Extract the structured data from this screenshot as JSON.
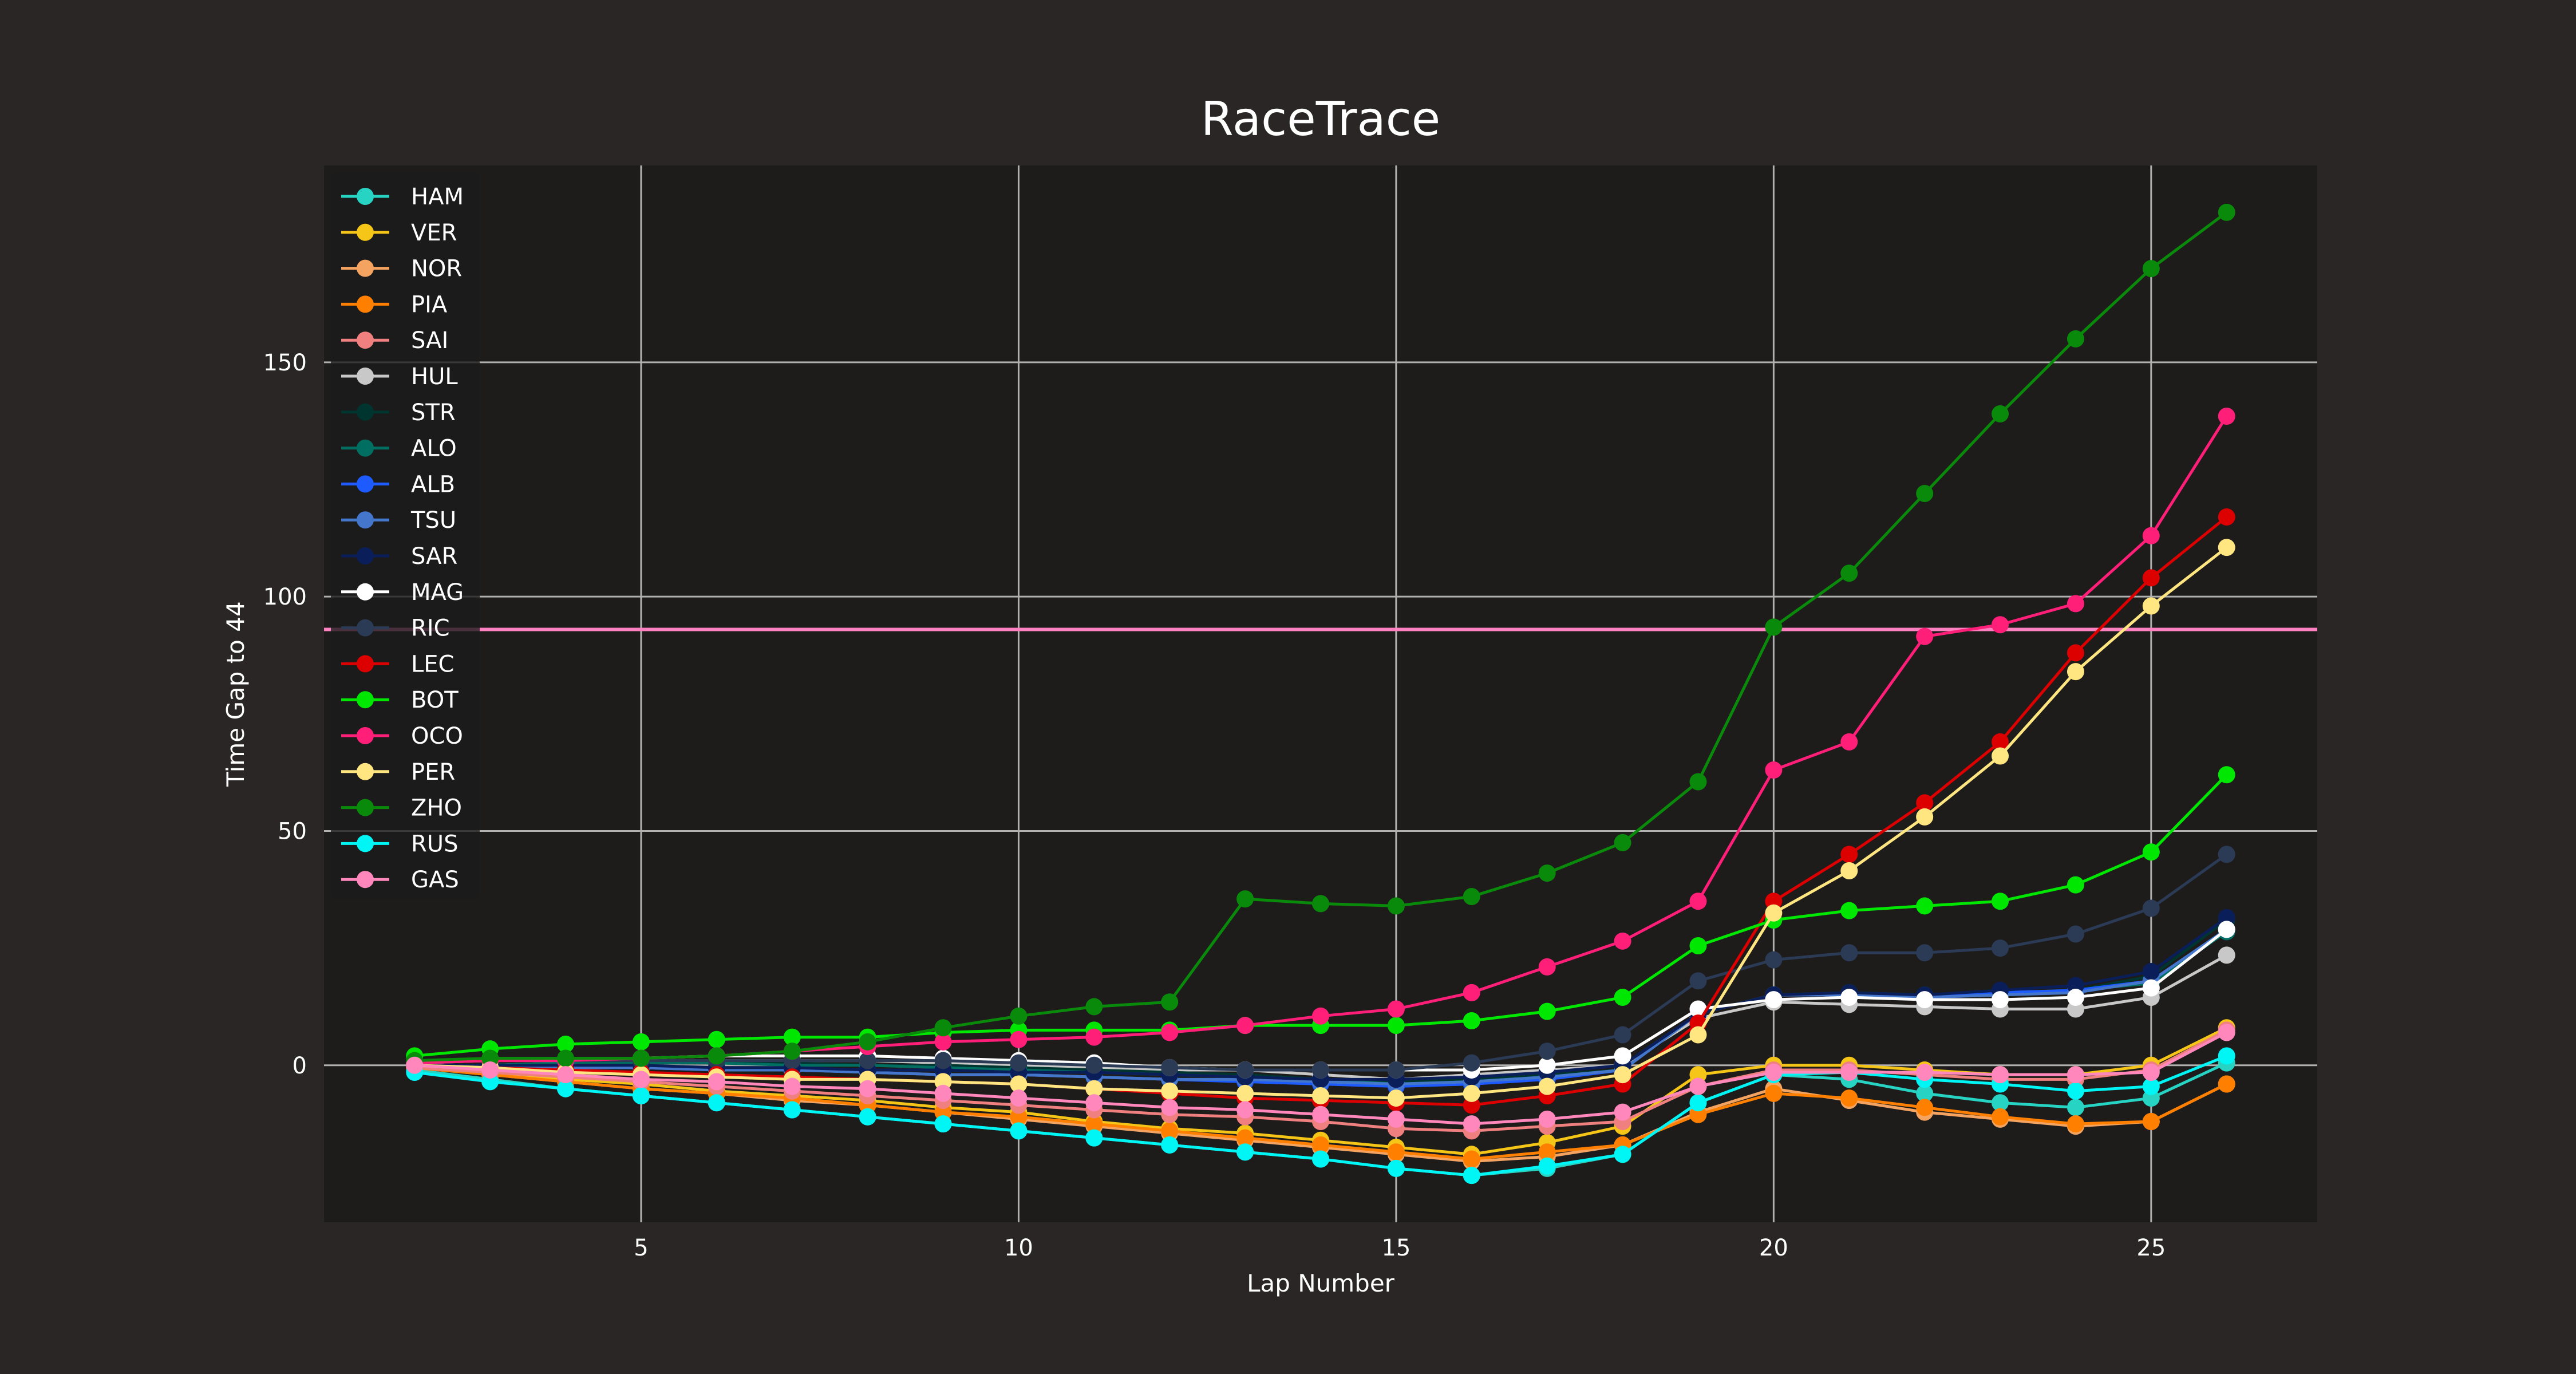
{
  "chart_data": {
    "type": "line",
    "title": "RaceTrace",
    "xlabel": "Lap Number",
    "ylabel": "Time Gap to 44",
    "xlim": [
      0.8,
      27.2
    ],
    "ylim": [
      -33.5,
      192
    ],
    "x_ticks": [
      5,
      10,
      15,
      20,
      25
    ],
    "y_ticks": [
      0,
      50,
      100,
      150
    ],
    "grid": true,
    "legend_position": "upper-left",
    "reference_line": {
      "y": 93,
      "color": "#ff80c0"
    },
    "x": [
      2,
      3,
      4,
      5,
      6,
      7,
      8,
      9,
      10,
      11,
      12,
      13,
      14,
      15,
      16,
      17,
      18,
      19,
      20,
      21,
      22,
      23,
      24,
      25,
      26
    ],
    "series": [
      {
        "name": "HAM",
        "color": "#27d3c3",
        "values": [
          -1,
          -3,
          -5,
          -6.5,
          -8,
          -9.5,
          -11,
          -12.5,
          -14,
          -15.5,
          -17,
          -18.5,
          -20,
          -22,
          -23.5,
          -22,
          -19,
          -8,
          -2,
          -3,
          -6,
          -8,
          -9,
          -7,
          0.5
        ]
      },
      {
        "name": "VER",
        "color": "#f5c518",
        "values": [
          -0.5,
          -1.5,
          -3,
          -4,
          -5.5,
          -6.5,
          -7.5,
          -9,
          -10,
          -12,
          -13.5,
          -14.5,
          -16,
          -17.5,
          -19,
          -16.5,
          -13,
          -2,
          0,
          0,
          -1,
          -2,
          -2,
          0,
          8
        ]
      },
      {
        "name": "NOR",
        "color": "#f4a460",
        "values": [
          -0.5,
          -2,
          -3.5,
          -5,
          -6,
          -7.5,
          -8.5,
          -10,
          -11.5,
          -13,
          -14.5,
          -16,
          -17.5,
          -19,
          -20.5,
          -19.5,
          -17,
          -10,
          -5,
          -7.5,
          -10,
          -11.5,
          -13,
          -12,
          -4
        ]
      },
      {
        "name": "PIA",
        "color": "#ff8000",
        "values": [
          -0.5,
          -2,
          -3.5,
          -5,
          -6,
          -7,
          -8.5,
          -10,
          -11,
          -12.5,
          -14,
          -15.5,
          -17,
          -18.5,
          -20,
          -18.5,
          -17,
          -10.5,
          -6,
          -7,
          -9,
          -11,
          -12.5,
          -12,
          -4
        ]
      },
      {
        "name": "SAI",
        "color": "#f08080",
        "values": [
          -0.5,
          -1.5,
          -2.5,
          -3.5,
          -4.5,
          -5.5,
          -6.5,
          -7.5,
          -8.5,
          -9.5,
          -10.5,
          -11,
          -12,
          -13.5,
          -14,
          -13,
          -12,
          -4.5,
          -1,
          -1,
          -2,
          -3,
          -3,
          -1,
          7.5
        ]
      },
      {
        "name": "HUL",
        "color": "#c8c8c8",
        "values": [
          0,
          0,
          0.5,
          1,
          1,
          1,
          1,
          0.5,
          0,
          -0.5,
          -1,
          -1,
          -2,
          -3,
          -2,
          -1,
          0,
          10,
          13.5,
          13,
          12.5,
          12,
          12,
          14.5,
          23.5
        ]
      },
      {
        "name": "STR",
        "color": "#00352f",
        "values": [
          0,
          0,
          0.5,
          1,
          1,
          0.5,
          0,
          0,
          -0.5,
          -1,
          -1.5,
          -2,
          -3,
          -3.5,
          -3,
          -2,
          -1,
          11,
          15,
          15,
          15,
          15,
          16,
          19,
          31
        ]
      },
      {
        "name": "ALO",
        "color": "#006f62",
        "values": [
          0,
          0,
          0.5,
          0.5,
          0.5,
          0,
          0,
          -0.5,
          -1,
          -1.5,
          -2,
          -2.5,
          -3,
          -4,
          -3.5,
          -2.5,
          -1,
          11,
          15,
          15.5,
          15,
          15.5,
          16,
          17.5,
          28.5
        ]
      },
      {
        "name": "ALB",
        "color": "#1e5bff",
        "values": [
          0,
          0,
          -0.5,
          -0.5,
          -1,
          -1,
          -1.5,
          -2,
          -2,
          -2.5,
          -3,
          -3.5,
          -4,
          -4.5,
          -4,
          -3,
          -1,
          11,
          15,
          15,
          14.5,
          15.5,
          16,
          18,
          29
        ]
      },
      {
        "name": "TSU",
        "color": "#4477cc",
        "values": [
          0,
          0,
          -0.5,
          -0.5,
          -1,
          -1,
          -1.5,
          -2,
          -2,
          -2.5,
          -3,
          -3,
          -3.5,
          -4,
          -3.5,
          -2.5,
          -1,
          11,
          15,
          15,
          14.5,
          15,
          15.5,
          18,
          29
        ]
      },
      {
        "name": "SAR",
        "color": "#0a1e5a",
        "values": [
          0,
          0,
          0,
          0,
          -0.5,
          -0.5,
          -1,
          -1,
          -1.5,
          -1.5,
          -2,
          -2.5,
          -3,
          -3,
          -2.5,
          -1.5,
          0,
          11,
          15,
          15.5,
          15,
          16,
          17,
          20,
          31.5
        ]
      },
      {
        "name": "MAG",
        "color": "#ffffff",
        "values": [
          0.5,
          1,
          1,
          1.5,
          2,
          2,
          2,
          1.5,
          1,
          0.5,
          -0.5,
          -1,
          -1,
          -1,
          -1,
          0,
          2,
          12,
          14,
          14.5,
          14,
          14,
          14.5,
          16.5,
          29
        ]
      },
      {
        "name": "RIC",
        "color": "#2b3a55",
        "values": [
          0.5,
          1,
          1,
          1,
          1,
          1,
          1,
          1,
          0.5,
          0,
          -0.5,
          -1,
          -1,
          -1,
          0.5,
          3,
          6.5,
          18,
          22.5,
          24,
          24,
          25,
          28,
          33.5,
          45
        ]
      },
      {
        "name": "LEC",
        "color": "#dc0000",
        "values": [
          0,
          -0.5,
          -1,
          -1.5,
          -2,
          -2.5,
          -3,
          -3.5,
          -4,
          -5,
          -6,
          -7,
          -7.5,
          -8,
          -8.5,
          -6.5,
          -4,
          9,
          35,
          45,
          56,
          69,
          88,
          104,
          117
        ]
      },
      {
        "name": "BOT",
        "color": "#00e701",
        "values": [
          2,
          3.5,
          4.5,
          5,
          5.5,
          6,
          6,
          7,
          7.5,
          7.5,
          7.5,
          8.5,
          8.5,
          8.5,
          9.5,
          11.5,
          14.5,
          25.5,
          31,
          33,
          34,
          35,
          38.5,
          45.5,
          62
        ]
      },
      {
        "name": "OCO",
        "color": "#ff1e78",
        "values": [
          0.5,
          1,
          1,
          1.5,
          2,
          3,
          4,
          5,
          5.5,
          6,
          7,
          8.5,
          10.5,
          12,
          15.5,
          21,
          26.5,
          35,
          63,
          69,
          91.5,
          94,
          98.5,
          113,
          138.5
        ]
      },
      {
        "name": "PER",
        "color": "#ffe680",
        "values": [
          0,
          -0.5,
          -1.5,
          -2,
          -2.5,
          -3,
          -3,
          -3.5,
          -4,
          -5,
          -5.5,
          -6,
          -6.5,
          -7,
          -6,
          -4.5,
          -2,
          6.5,
          32.5,
          41.5,
          53,
          66,
          84,
          98,
          110.5
        ]
      },
      {
        "name": "ZHO",
        "color": "#0a8a0a",
        "values": [
          1,
          1.5,
          1.5,
          1.5,
          2,
          3,
          5,
          8,
          10.5,
          12.5,
          13.5,
          35.5,
          34.5,
          34,
          36,
          41,
          47.5,
          60.5,
          93.5,
          105,
          122,
          139,
          155,
          170,
          182
        ]
      },
      {
        "name": "RUS",
        "color": "#00f5f5",
        "values": [
          -1.5,
          -3.5,
          -5,
          -6.5,
          -8,
          -9.5,
          -11,
          -12.5,
          -14,
          -15.5,
          -17,
          -18.5,
          -20,
          -22,
          -23.5,
          -21.5,
          -19,
          -8,
          -2,
          -1.5,
          -3,
          -4,
          -5.5,
          -4.5,
          2
        ]
      },
      {
        "name": "GAS",
        "color": "#ff87bc",
        "values": [
          0,
          -1,
          -2,
          -3,
          -3.5,
          -4.5,
          -5,
          -6,
          -7,
          -8,
          -9,
          -9.5,
          -10.5,
          -11.5,
          -12.5,
          -11.5,
          -10,
          -4.5,
          -1.5,
          -1.5,
          -1.5,
          -2,
          -2,
          -1.5,
          7
        ]
      }
    ]
  }
}
